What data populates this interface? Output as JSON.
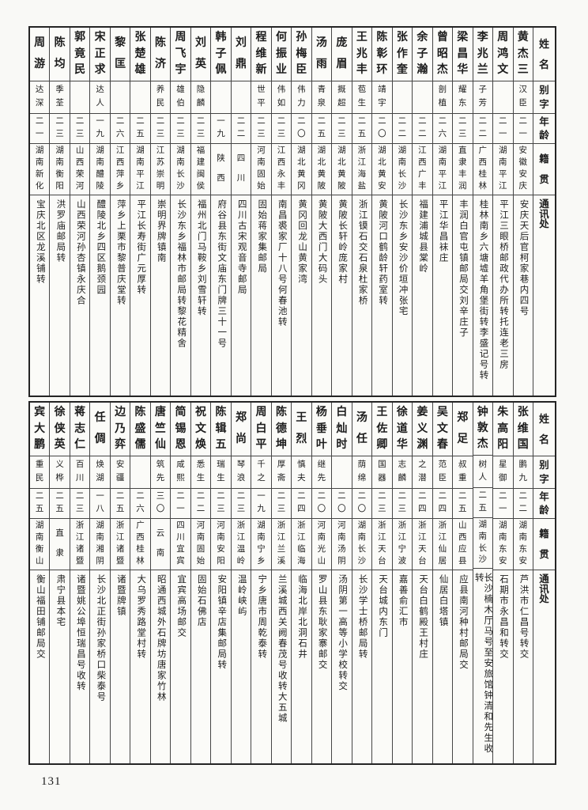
{
  "page": {
    "number": "131"
  },
  "colors": {
    "paper": "#f9f9f6",
    "ink": "#1c1c1c",
    "grid_line": "#454545",
    "border": "#242424"
  },
  "headers": {
    "name": "姓名",
    "alt_name": "别字",
    "age": "年龄",
    "origin": "籍贯",
    "address": "通讯处"
  },
  "sections": [
    {
      "entries": [
        {
          "name": "黄杰三",
          "alt": "汉臣",
          "age": "二一",
          "origin": "安徽安庆",
          "address": "安庆天后官柯家巷内四号"
        },
        {
          "name": "周鸿文",
          "alt": "",
          "age": "二一",
          "origin": "湖南平江",
          "address": "平江三眼桥邮政代办所转托连老三房"
        },
        {
          "name": "李兆兰",
          "alt": "子芳",
          "age": "二二",
          "origin": "广西桂林",
          "address": "桂林南乡六塘墟羊角堡街转李盛记号转"
        },
        {
          "name": "梁昌华",
          "alt": "耀东",
          "age": "二三",
          "origin": "直隶丰润",
          "address": "丰润白官屯镇邮局交刘辛庄子"
        },
        {
          "name": "曾昭杰",
          "alt": "剖植",
          "age": "二六",
          "origin": "湖南平江",
          "address": "平江华昌袜庄"
        },
        {
          "name": "余子瀚",
          "alt": "",
          "age": "二二",
          "origin": "江西广丰",
          "address": "福建浦城县棠岭"
        },
        {
          "name": "张作奎",
          "alt": "",
          "age": "二二",
          "origin": "湖南长沙",
          "address": "长沙东乡安沙价垣冲张宅"
        },
        {
          "name": "陈彰环",
          "alt": "靖宇",
          "age": "二〇",
          "origin": "湖北黄安",
          "address": "黄陂河口鹤龄轩药室转"
        },
        {
          "name": "王兆丰",
          "alt": "苞生",
          "age": "二五",
          "origin": "浙江海盐",
          "address": "浙江镆石交石泉杜家桥"
        },
        {
          "name": "庞眉",
          "alt": "摡超",
          "age": "二三",
          "origin": "湖北黄陂",
          "address": "黄陂长轩岭庞家村"
        },
        {
          "name": "汤雨",
          "alt": "青泉",
          "age": "二五",
          "origin": "湖北黄陂",
          "address": "黄陂大西门大码头"
        },
        {
          "name": "孙梅臣",
          "alt": "伟力",
          "age": "二〇",
          "origin": "湖北黄冈",
          "address": "黄冈回龙山黄家湾"
        },
        {
          "name": "何振业",
          "alt": "伟如",
          "age": "二三",
          "origin": "江西永丰",
          "address": "南昌裘家厂十八号何春池转"
        },
        {
          "name": "程维新",
          "alt": "世平",
          "age": "二三",
          "origin": "河南固始",
          "address": "固始蒋家集邮局"
        },
        {
          "name": "刘鼎",
          "alt": "",
          "age": "二二",
          "origin": "四川",
          "address": "四川古宋观音寺邮局"
        },
        {
          "name": "韩子佩",
          "alt": "",
          "age": "一九",
          "origin": "陕西",
          "address": "府谷县东街文庙东门牌三十一号"
        },
        {
          "name": "刘英",
          "alt": "隐麟",
          "age": "二三",
          "origin": "福建闽侯",
          "address": "福州北门马鞍乡刘雪轩转"
        },
        {
          "name": "周飞宇",
          "alt": "雄伯",
          "age": "二三",
          "origin": "湖南长沙",
          "address": "长沙东乡福林市邮局转黎花精舍"
        },
        {
          "name": "陈济",
          "alt": "养民",
          "age": "二三",
          "origin": "江苏崇明",
          "address": "崇明界牌镇南"
        },
        {
          "name": "张楚雄",
          "alt": "",
          "age": "二五",
          "origin": "湖南平江",
          "address": "平江长寿街广元厚转"
        },
        {
          "name": "黎匡",
          "alt": "",
          "age": "二六",
          "origin": "江西萍乡",
          "address": "萍乡上栗市黎普庆堂转"
        },
        {
          "name": "宋正求",
          "alt": "达人",
          "age": "一九",
          "origin": "湖南醴陵",
          "address": "醴陵北乡四区鹅颈园"
        },
        {
          "name": "郭竟民",
          "alt": "",
          "age": "二三",
          "origin": "山西荣河",
          "address": "山西荣河孙杏镇永庆合"
        },
        {
          "name": "陈均",
          "alt": "季荃",
          "age": "二三",
          "origin": "湖南衡阳",
          "address": "洪罗庙邮局转"
        },
        {
          "name": "周游",
          "alt": "达深",
          "age": "二一",
          "origin": "湖南新化",
          "address": "宝庆北区龙溪铺转"
        }
      ]
    },
    {
      "entries": [
        {
          "name": "张维国",
          "alt": "鹏九",
          "age": "二二",
          "origin": "湖南东安",
          "address": "芦洪市仁昌号转交"
        },
        {
          "name": "朱高阳",
          "alt": "星御",
          "age": "二一",
          "origin": "湖南东安",
          "address": "石期市永昌和转交"
        },
        {
          "name": "钟敦杰",
          "alt": "树人",
          "age": "二五",
          "origin": "湖南长沙",
          "address": "长沙楠木厅马号至安旅馆钟清和先生收转"
        },
        {
          "name": "郑足",
          "alt": "叔重",
          "age": "二五",
          "origin": "山西应县",
          "address": "应县南河种村邮局交"
        },
        {
          "name": "吴文春",
          "alt": "范臣",
          "age": "二四",
          "origin": "浙江仙居",
          "address": "仙居白塔镇"
        },
        {
          "name": "姜义渊",
          "alt": "之潜",
          "age": "二四",
          "origin": "浙江天台",
          "address": "天台白鹤殿王村庄"
        },
        {
          "name": "徐道华",
          "alt": "志麟",
          "age": "二三",
          "origin": "浙江宁波",
          "address": "嘉善俞汇市"
        },
        {
          "name": "王佐卿",
          "alt": "国器",
          "age": "二三",
          "origin": "浙江天台",
          "address": "天台城内东门"
        },
        {
          "name": "汤任",
          "alt": "荫绵",
          "age": "二〇",
          "origin": "湖南长沙",
          "address": "长沙学士桥邮局转"
        },
        {
          "name": "白灿时",
          "alt": "",
          "age": "二〇",
          "origin": "河南汤阴",
          "address": "汤阴第一高等小学校转交"
        },
        {
          "name": "杨垂叶",
          "alt": "继先",
          "age": "二〇",
          "origin": "河南光山",
          "address": "罗山县东耿家寨邮交"
        },
        {
          "name": "王烈",
          "alt": "慎夫",
          "age": "二四",
          "origin": "浙江临海",
          "address": "临海北岸北洞石井"
        },
        {
          "name": "陈德坤",
          "alt": "厚斋",
          "age": "二三",
          "origin": "浙江兰溪",
          "address": "兰溪城西关阙春茂号收转大五城"
        },
        {
          "name": "周白平",
          "alt": "千之",
          "age": "一九",
          "origin": "湖南宁乡",
          "address": "宁乡唐市周乾泰转"
        },
        {
          "name": "郑尚",
          "alt": "琴浪",
          "age": "二三",
          "origin": "浙江温岭",
          "address": "温岭峡屿"
        },
        {
          "name": "陈辑五",
          "alt": "瑞生",
          "age": "二三",
          "origin": "河南安阳",
          "address": "安阳镇辛店集邮局转"
        },
        {
          "name": "祝文焕",
          "alt": "悉生",
          "age": "二二",
          "origin": "河南固始",
          "address": "固始石佛店"
        },
        {
          "name": "简锡恩",
          "alt": "咸熙",
          "age": "二一",
          "origin": "四川宜宾",
          "address": "宜宾高场邮交"
        },
        {
          "name": "唐竺仙",
          "alt": "筑先",
          "age": "三〇",
          "origin": "云南",
          "address": "昭通西城外石牌坊唐家竹林"
        },
        {
          "name": "陈盛儒",
          "alt": "",
          "age": "二六",
          "origin": "广西桂林",
          "address": "大乌罗秀路堂村转"
        },
        {
          "name": "边乃弈",
          "alt": "安疆",
          "age": "二五",
          "origin": "浙江诸暨",
          "address": "诸暨牌镇"
        },
        {
          "name": "任倜",
          "alt": "焕湖",
          "age": "一八",
          "origin": "湖南湘阴",
          "address": "长沙北正街孙家桥口柴泰号"
        },
        {
          "name": "蒋志仁",
          "alt": "百川",
          "age": "二三",
          "origin": "浙江诸暨",
          "address": "诸暨姚公埠恒瑞昌号收转"
        },
        {
          "name": "徐侠英",
          "alt": "义桦",
          "age": "二五",
          "origin": "直隶",
          "address": "肃宁县本宅"
        },
        {
          "name": "宾大鹏",
          "alt": "重民",
          "age": "二五",
          "origin": "湖南衡山",
          "address": "衡山福田铺邮局交"
        }
      ]
    }
  ]
}
